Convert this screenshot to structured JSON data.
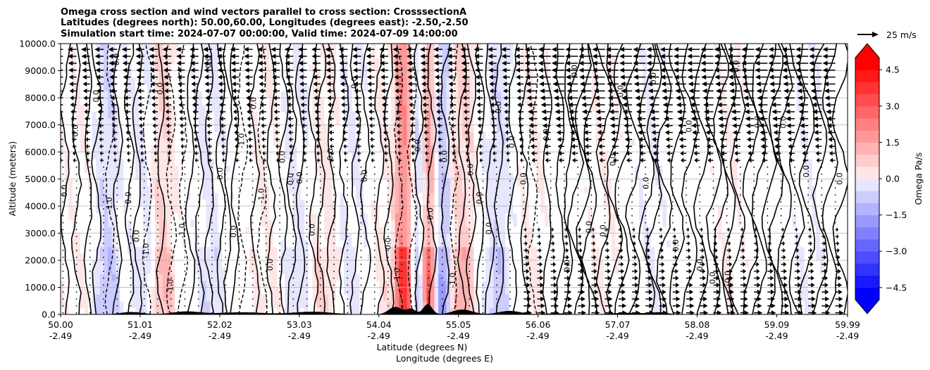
{
  "chart_data": {
    "type": "heatmap",
    "title_lines": [
      "Omega cross section and wind vectors parallel to cross section: CrosssectionA",
      "Latitudes (degrees north): 50.00,60.00, Longitudes (degrees east): -2.50,-2.50",
      "Simulation start time: 2024-07-07 00:00:00, Valid time: 2024-07-09 14:00:00"
    ],
    "xlabel_lat": "Latitude (degrees N)",
    "xlabel_lon": "Longitude (degrees E)",
    "ylabel": "Altitude (meters)",
    "xlim": [
      50.0,
      59.99
    ],
    "ylim": [
      0,
      10000
    ],
    "x_ticks": [
      {
        "lat": "50.00",
        "lon": "-2.49",
        "value": 50.0
      },
      {
        "lat": "51.01",
        "lon": "-2.49",
        "value": 51.01
      },
      {
        "lat": "52.02",
        "lon": "-2.49",
        "value": 52.02
      },
      {
        "lat": "53.03",
        "lon": "-2.49",
        "value": 53.03
      },
      {
        "lat": "54.04",
        "lon": "-2.49",
        "value": 54.04
      },
      {
        "lat": "55.05",
        "lon": "-2.49",
        "value": 55.05
      },
      {
        "lat": "56.06",
        "lon": "-2.49",
        "value": 56.06
      },
      {
        "lat": "57.07",
        "lon": "-2.49",
        "value": 57.07
      },
      {
        "lat": "58.08",
        "lon": "-2.49",
        "value": 58.08
      },
      {
        "lat": "59.09",
        "lon": "-2.49",
        "value": 59.09
      },
      {
        "lat": "59.99",
        "lon": "-2.49",
        "value": 59.99
      }
    ],
    "y_ticks": [
      {
        "label": "0.0",
        "value": 0
      },
      {
        "label": "1000.0",
        "value": 1000
      },
      {
        "label": "2000.0",
        "value": 2000
      },
      {
        "label": "3000.0",
        "value": 3000
      },
      {
        "label": "4000.0",
        "value": 4000
      },
      {
        "label": "5000.0",
        "value": 5000
      },
      {
        "label": "6000.0",
        "value": 6000
      },
      {
        "label": "7000.0",
        "value": 7000
      },
      {
        "label": "8000.0",
        "value": 8000
      },
      {
        "label": "9000.0",
        "value": 9000
      },
      {
        "label": "10000.0",
        "value": 10000
      }
    ],
    "grid": "horizontal",
    "colorbar": {
      "label": "Omega Pa/s",
      "range": [
        -5.0,
        5.0
      ],
      "extend": "both",
      "levels": 20,
      "ticks": [
        {
          "label": "4.5",
          "value": 4.5
        },
        {
          "label": "3.0",
          "value": 3.0
        },
        {
          "label": "1.5",
          "value": 1.5
        },
        {
          "label": "0.0",
          "value": 0.0
        },
        {
          "label": "−1.5",
          "value": -1.5
        },
        {
          "label": "−3.0",
          "value": -3.0
        },
        {
          "label": "−4.5",
          "value": -4.5
        }
      ],
      "negative_color": "#0000ff",
      "positive_color": "#ff0000"
    },
    "quiver_key": {
      "label": "25 m/s",
      "speed": 25
    },
    "contour_labels": [
      "0.0",
      "-1.0",
      "1.0"
    ],
    "omega_field": {
      "description": "approximate omega (Pa/s) along the section",
      "columns": [
        {
          "lat": 50.2,
          "omega": 0.2
        },
        {
          "lat": 50.6,
          "omega": -1.3
        },
        {
          "lat": 51.05,
          "omega": -0.6
        },
        {
          "lat": 51.3,
          "omega": 1.5
        },
        {
          "lat": 51.9,
          "omega": -0.8
        },
        {
          "lat": 52.6,
          "omega": 0.4
        },
        {
          "lat": 53.0,
          "omega": -0.6
        },
        {
          "lat": 53.35,
          "omega": 0.9
        },
        {
          "lat": 53.7,
          "omega": -0.5
        },
        {
          "lat": 54.15,
          "omega": 0.6
        },
        {
          "lat": 54.35,
          "omega": 4.5
        },
        {
          "lat": 54.55,
          "omega": -1.6
        },
        {
          "lat": 54.68,
          "omega": 5.0
        },
        {
          "lat": 54.8,
          "omega": -2.5
        },
        {
          "lat": 55.1,
          "omega": 1.8
        },
        {
          "lat": 55.55,
          "omega": -1.2
        },
        {
          "lat": 56.0,
          "omega": 0.4
        },
        {
          "lat": 56.9,
          "omega": 0.3
        },
        {
          "lat": 57.5,
          "omega": -0.3
        },
        {
          "lat": 58.5,
          "omega": 0.2
        },
        {
          "lat": 59.5,
          "omega": -0.2
        }
      ]
    },
    "wind_summary": {
      "upper_levels": "northerly flow (arrows pointing toward lower latitude) above ~6000 m",
      "lower_levels": "southerly flow (arrows pointing toward higher latitude) below ~3000 m north of 56 N"
    }
  }
}
